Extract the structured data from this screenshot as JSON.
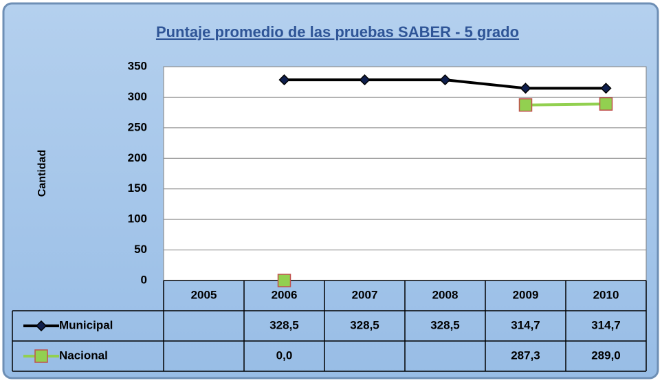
{
  "chart_data": {
    "type": "line",
    "title": "Puntaje promedio de las pruebas SABER - 5 grado",
    "y_label": "Cantidad",
    "categories": [
      "2005",
      "2006",
      "2007",
      "2008",
      "2009",
      "2010"
    ],
    "series": [
      {
        "name": "Municipal",
        "color": "#000000",
        "marker": "diamond",
        "marker_color": "#0f1f4d",
        "marker_edge": "#000000",
        "values": [
          null,
          328.5,
          328.5,
          328.5,
          314.7,
          314.7
        ],
        "value_labels": [
          null,
          "328,5",
          "328,5",
          "328,5",
          "314,7",
          "314,7"
        ]
      },
      {
        "name": "Nacional",
        "color": "#92d050",
        "marker": "square",
        "marker_color": "#92d050",
        "marker_edge": "#c0504d",
        "values": [
          null,
          0,
          null,
          null,
          287.3,
          289.0
        ],
        "value_labels": [
          null,
          "0,0",
          null,
          null,
          "287,3",
          "289,0"
        ]
      }
    ],
    "ylim": [
      0,
      350
    ],
    "yticks": [
      0,
      50,
      100,
      150,
      200,
      250,
      300,
      350
    ],
    "grid": true,
    "data_table": true
  }
}
